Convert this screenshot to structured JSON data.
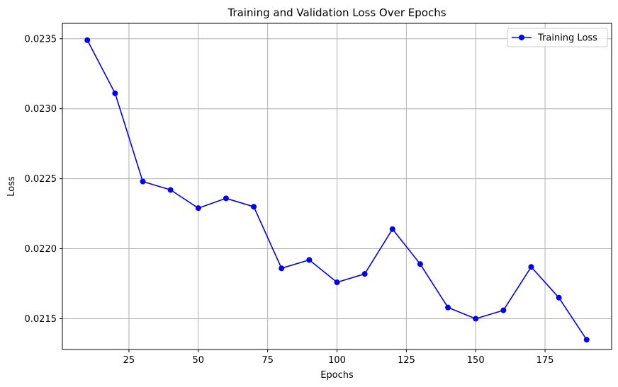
{
  "chart_data": {
    "type": "line",
    "title": "Training and Validation Loss Over Epochs",
    "xlabel": "Epochs",
    "ylabel": "Loss",
    "xlim": [
      1,
      199
    ],
    "ylim": [
      0.02128,
      0.02361
    ],
    "xticks": [
      25,
      50,
      75,
      100,
      125,
      150,
      175
    ],
    "xtick_labels": [
      "25",
      "50",
      "75",
      "100",
      "125",
      "150",
      "175"
    ],
    "yticks": [
      0.0215,
      0.022,
      0.0225,
      0.023,
      0.0235
    ],
    "ytick_labels": [
      "0.0215",
      "0.0220",
      "0.0225",
      "0.0230",
      "0.0235"
    ],
    "grid": true,
    "legend_position": "top-right",
    "series": [
      {
        "name": "Training Loss",
        "color": "#0000ff",
        "marker": "circle",
        "x": [
          10,
          20,
          30,
          40,
          50,
          60,
          70,
          80,
          90,
          100,
          110,
          120,
          130,
          140,
          150,
          160,
          170,
          180,
          190
        ],
        "values": [
          0.02349,
          0.02311,
          0.02248,
          0.02242,
          0.02229,
          0.02236,
          0.0223,
          0.02186,
          0.02192,
          0.02176,
          0.02182,
          0.02214,
          0.02189,
          0.02158,
          0.0215,
          0.02156,
          0.02187,
          0.02165,
          0.02135
        ]
      }
    ]
  }
}
